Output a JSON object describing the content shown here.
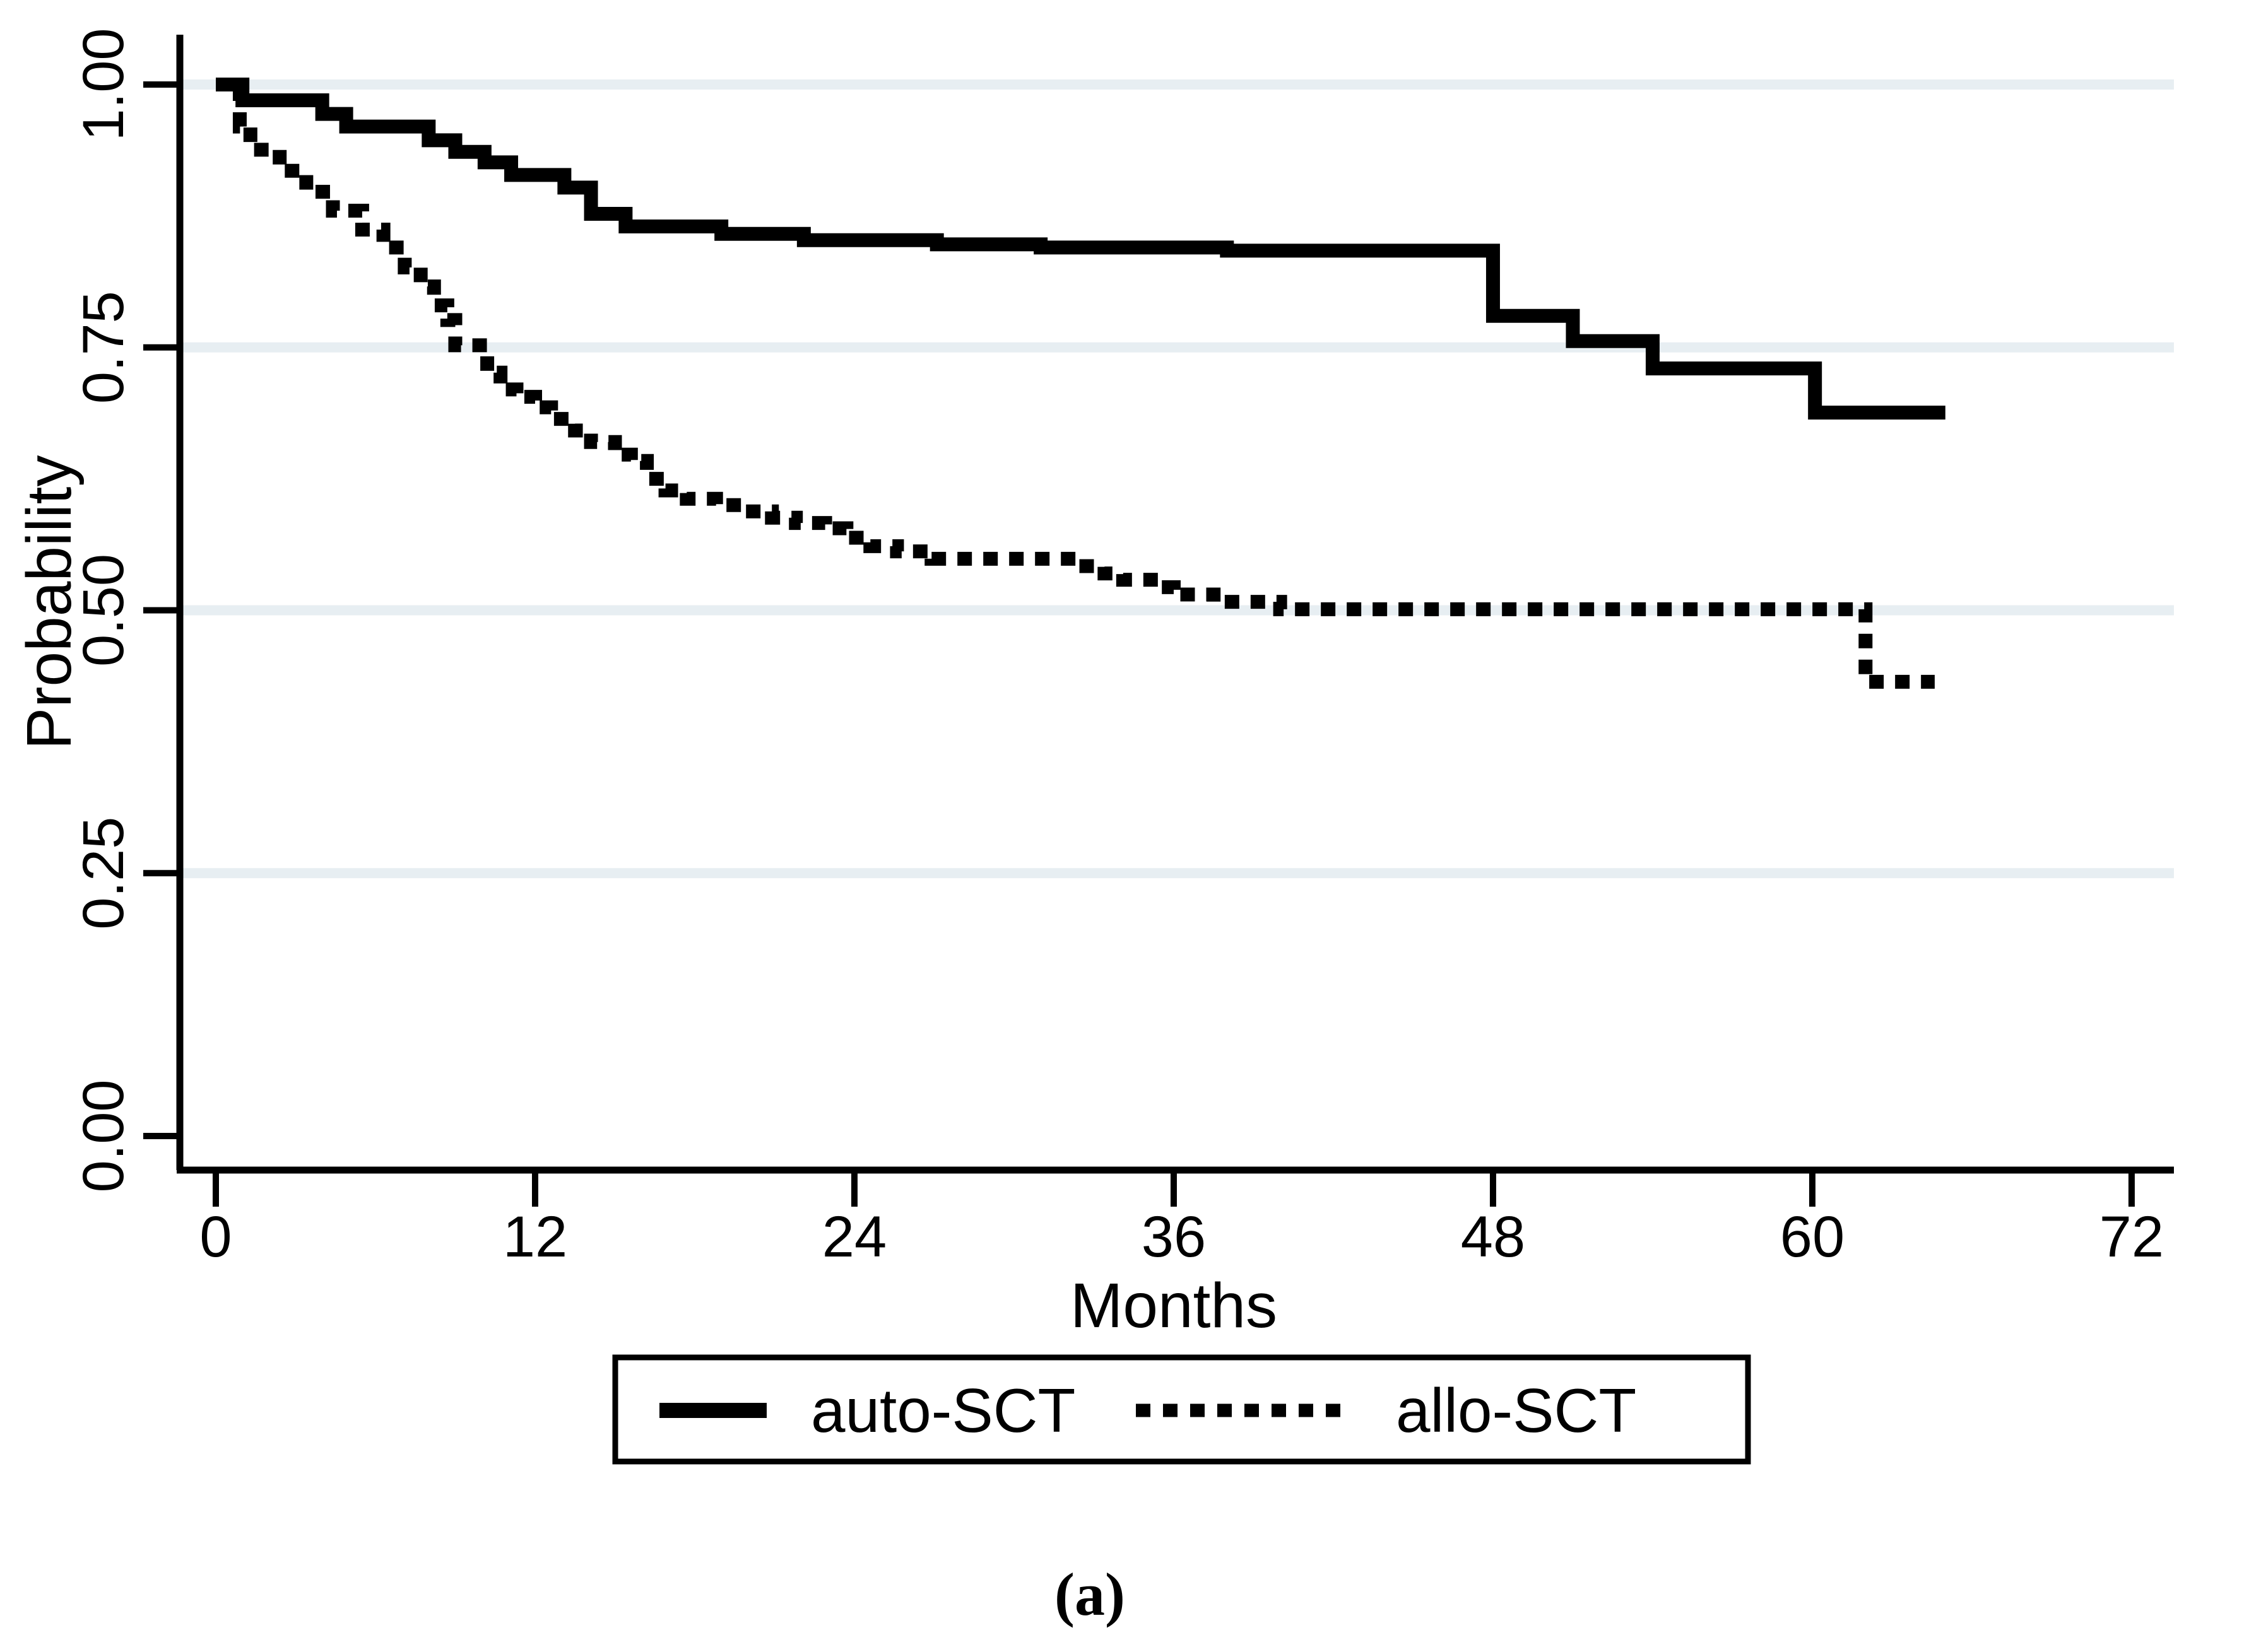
{
  "figure": {
    "caption": "(a)"
  },
  "chart_data": {
    "type": "line",
    "subtype": "kaplan-meier-step-curves",
    "title": "",
    "xlabel": "Months",
    "ylabel": "Probability",
    "xlim": [
      0,
      72
    ],
    "ylim": [
      0.0,
      1.0
    ],
    "xticks": {
      "values": [
        0,
        12,
        24,
        36,
        48,
        60,
        72
      ],
      "labels": [
        "0",
        "12",
        "24",
        "36",
        "48",
        "60",
        "72"
      ]
    },
    "yticks": {
      "values": [
        0.0,
        0.25,
        0.5,
        0.75,
        1.0
      ],
      "labels": [
        "0.00",
        "0.25",
        "0.50",
        "0.75",
        "1.00"
      ]
    },
    "grid": "horizontal",
    "gridline_values": [
      0.25,
      0.5,
      0.75,
      1.0
    ],
    "colors": {
      "line": "#000000",
      "gridline": "#e7eef2",
      "background": "#ffffff",
      "legend_border": "#000000"
    },
    "legend_position": "bottom-center-boxed",
    "series": [
      {
        "name": "auto-SCT",
        "style": "solid",
        "end_t": 65.0,
        "steps": [
          [
            0,
            1.0
          ],
          [
            1.0,
            0.985
          ],
          [
            4.0,
            0.972
          ],
          [
            4.9,
            0.96
          ],
          [
            8.0,
            0.947
          ],
          [
            9.0,
            0.936
          ],
          [
            10.1,
            0.926
          ],
          [
            11.1,
            0.914
          ],
          [
            13.1,
            0.902
          ],
          [
            14.1,
            0.877
          ],
          [
            15.4,
            0.865
          ],
          [
            19.0,
            0.858
          ],
          [
            22.1,
            0.852
          ],
          [
            27.1,
            0.848
          ],
          [
            31.0,
            0.845
          ],
          [
            38.0,
            0.842
          ],
          [
            48.0,
            0.78
          ],
          [
            51.0,
            0.756
          ],
          [
            54.0,
            0.73
          ],
          [
            60.1,
            0.688
          ]
        ]
      },
      {
        "name": "allo-SCT",
        "style": "dashed",
        "end_t": 64.6,
        "steps": [
          [
            0,
            1.0
          ],
          [
            0.9,
            0.96
          ],
          [
            1.3,
            0.938
          ],
          [
            2.4,
            0.918
          ],
          [
            3.4,
            0.898
          ],
          [
            4.4,
            0.88
          ],
          [
            5.5,
            0.862
          ],
          [
            6.3,
            0.845
          ],
          [
            7.1,
            0.826
          ],
          [
            7.7,
            0.808
          ],
          [
            8.2,
            0.79
          ],
          [
            8.7,
            0.776
          ],
          [
            9.0,
            0.752
          ],
          [
            10.2,
            0.726
          ],
          [
            10.7,
            0.71
          ],
          [
            11.3,
            0.703
          ],
          [
            12.0,
            0.693
          ],
          [
            12.6,
            0.682
          ],
          [
            13.5,
            0.671
          ],
          [
            14.1,
            0.66
          ],
          [
            15.0,
            0.648
          ],
          [
            15.6,
            0.642
          ],
          [
            16.2,
            0.625
          ],
          [
            16.9,
            0.614
          ],
          [
            17.7,
            0.606
          ],
          [
            18.8,
            0.6
          ],
          [
            19.9,
            0.594
          ],
          [
            20.9,
            0.588
          ],
          [
            21.8,
            0.583
          ],
          [
            22.9,
            0.578
          ],
          [
            23.7,
            0.569
          ],
          [
            24.6,
            0.561
          ],
          [
            25.6,
            0.556
          ],
          [
            26.9,
            0.549
          ],
          [
            32.4,
            0.542
          ],
          [
            33.4,
            0.535
          ],
          [
            34.1,
            0.529
          ],
          [
            35.5,
            0.522
          ],
          [
            36.0,
            0.515
          ],
          [
            37.5,
            0.508
          ],
          [
            40.0,
            0.501
          ],
          [
            62.0,
            0.432
          ]
        ]
      }
    ]
  }
}
